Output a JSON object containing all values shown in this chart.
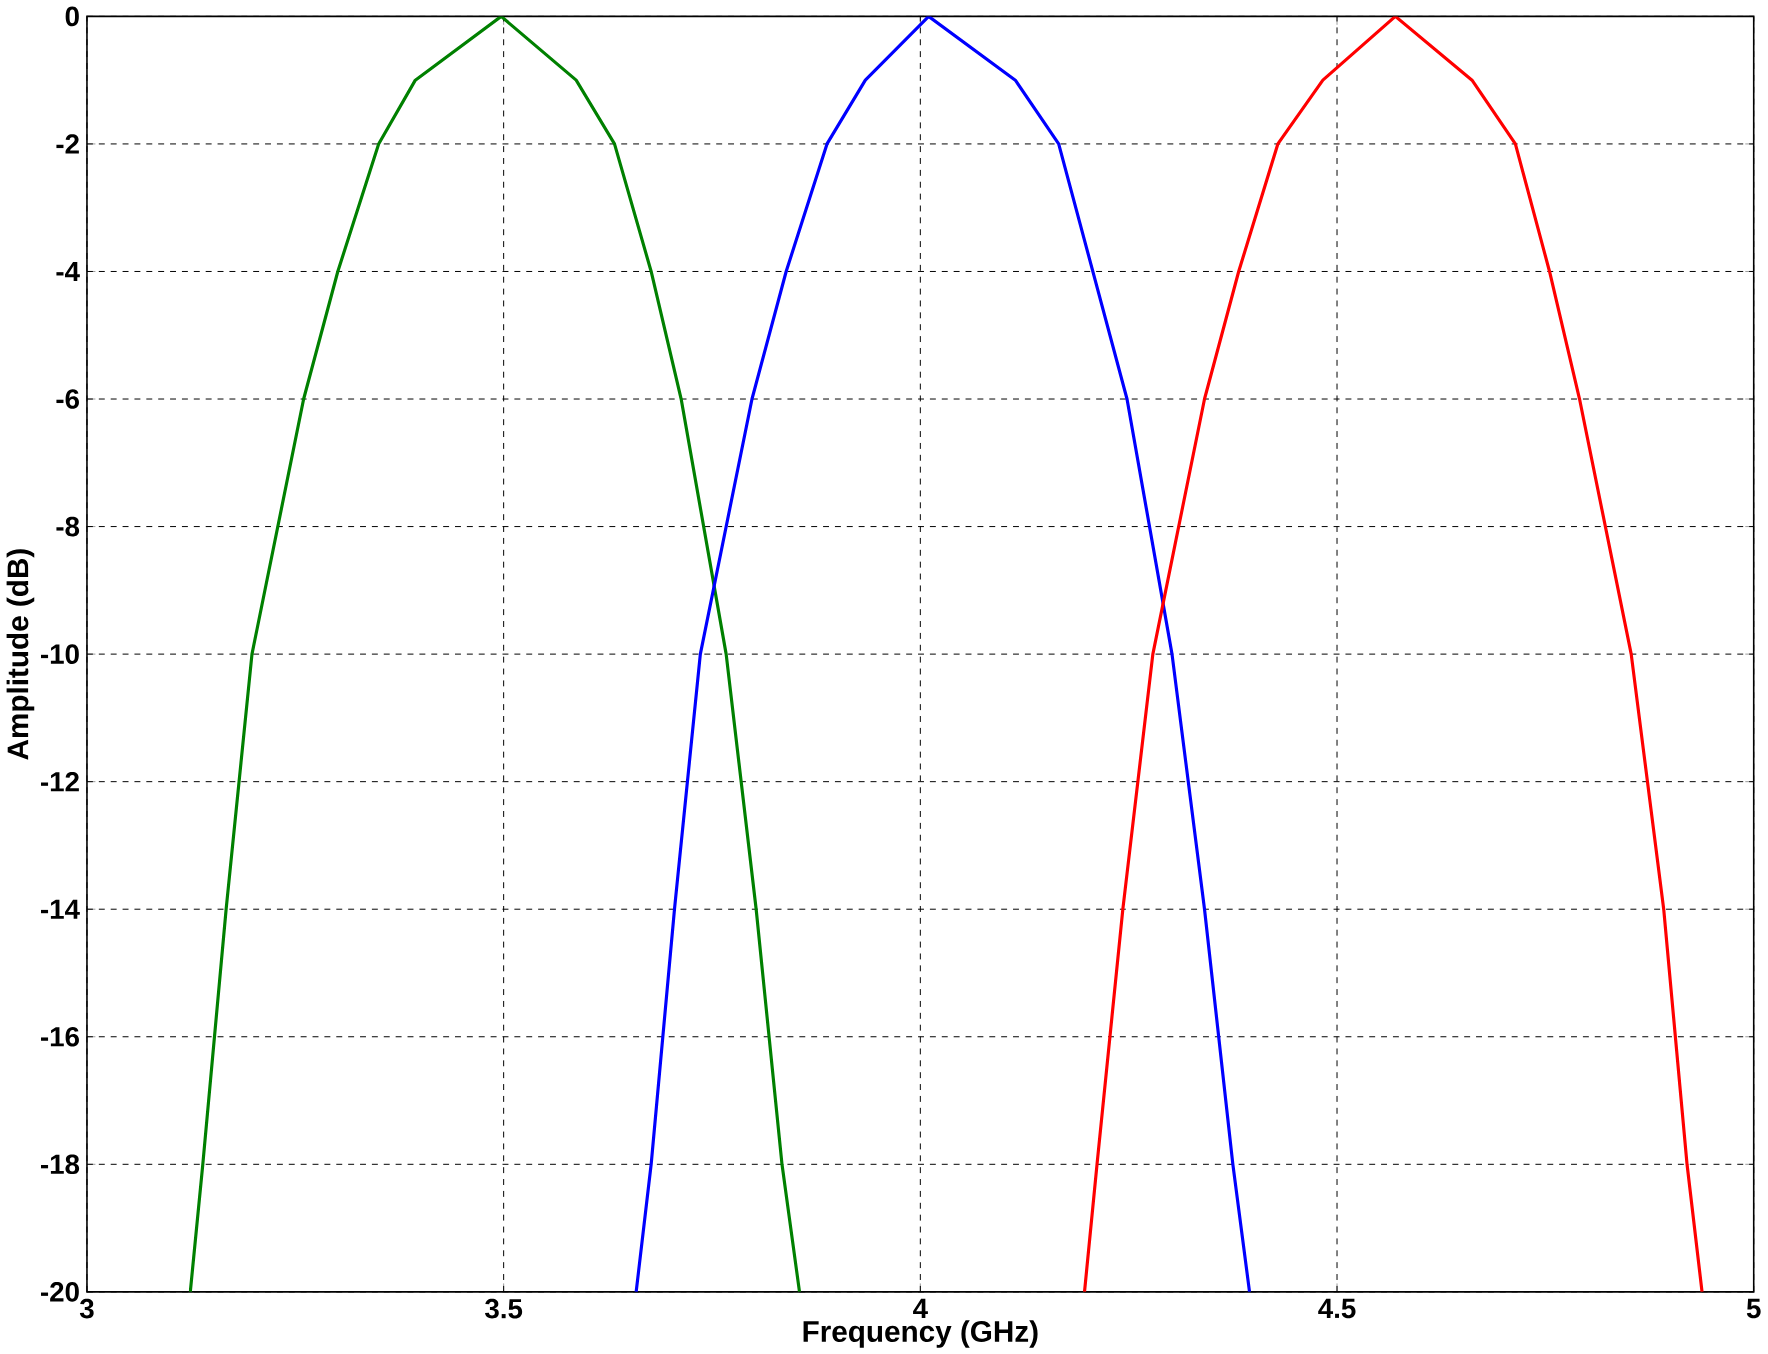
{
  "chart_data": {
    "type": "line",
    "xlabel": "Frequency (GHz)",
    "ylabel": "Amplitude (dB)",
    "xlim": [
      3,
      5
    ],
    "ylim": [
      -20,
      0
    ],
    "xticks": [
      3,
      3.5,
      4,
      4.5,
      5
    ],
    "yticks": [
      -20,
      -18,
      -16,
      -14,
      -12,
      -10,
      -8,
      -6,
      -4,
      -2,
      0
    ],
    "grid": true,
    "line_style": "solid",
    "marker": "none",
    "series": [
      {
        "color": "#008000",
        "x": [
          3.124,
          3.139,
          3.167,
          3.198,
          3.26,
          3.301,
          3.35,
          3.394,
          3.497,
          3.587,
          3.633,
          3.677,
          3.713,
          3.767,
          3.803,
          3.834,
          3.855
        ],
        "values": [
          -20,
          -18,
          -14,
          -10,
          -6,
          -4,
          -2,
          -1,
          0,
          -1,
          -2,
          -4,
          -6,
          -10,
          -14,
          -18,
          -20
        ]
      },
      {
        "color": "#0000ff",
        "x": [
          3.659,
          3.677,
          3.705,
          3.736,
          3.798,
          3.839,
          3.888,
          3.934,
          4.01,
          4.114,
          4.166,
          4.207,
          4.248,
          4.302,
          4.341,
          4.375,
          4.395
        ],
        "values": [
          -20,
          -18,
          -14,
          -10,
          -6,
          -4,
          -2,
          -1,
          0,
          -1,
          -2,
          -4,
          -6,
          -10,
          -14,
          -18,
          -20
        ]
      },
      {
        "color": "#ff0000",
        "x": [
          4.197,
          4.212,
          4.243,
          4.279,
          4.341,
          4.382,
          4.429,
          4.483,
          4.57,
          4.662,
          4.714,
          4.755,
          4.791,
          4.853,
          4.892,
          4.92,
          4.938
        ],
        "values": [
          -20,
          -18,
          -14,
          -10,
          -6,
          -4,
          -2,
          -1,
          0,
          -1,
          -2,
          -4,
          -6,
          -10,
          -14,
          -18,
          -20
        ]
      }
    ]
  }
}
